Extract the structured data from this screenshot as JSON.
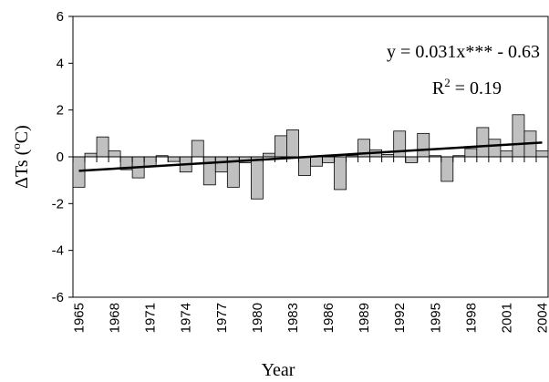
{
  "chart_data": {
    "type": "bar",
    "x_label": "Year",
    "y_label": {
      "before": "ΔTs (",
      "sup": "o",
      "after": "C)"
    },
    "annotations": [
      {
        "text": "y = 0.031x*** - 0.63"
      },
      {
        "before": "R",
        "sup": "2",
        "after": " = 0.19"
      }
    ],
    "categories": [
      "1965",
      null,
      null,
      "1968",
      null,
      null,
      "1971",
      null,
      null,
      "1974",
      null,
      null,
      "1977",
      null,
      null,
      "1980",
      null,
      null,
      "1983",
      null,
      null,
      "1986",
      null,
      null,
      "1989",
      null,
      null,
      "1992",
      null,
      null,
      "1995",
      null,
      null,
      "1998",
      null,
      null,
      "2001",
      null,
      null,
      "2004"
    ],
    "values": [
      -1.3,
      0.15,
      0.85,
      0.25,
      -0.55,
      -0.9,
      -0.4,
      0.05,
      -0.2,
      -0.65,
      0.7,
      -1.2,
      -0.65,
      -1.3,
      -0.25,
      -1.8,
      0.15,
      0.9,
      1.15,
      -0.8,
      -0.4,
      -0.25,
      -1.4,
      0.05,
      0.75,
      0.3,
      0.1,
      1.1,
      -0.25,
      1.0,
      0.05,
      -1.05,
      0.05,
      0.35,
      1.25,
      0.75,
      0.25,
      1.8,
      1.1,
      0.25
    ],
    "color": "#c0c0c0",
    "trend": {
      "values": [
        -0.6,
        0.61
      ],
      "color": "#000000"
    },
    "ylim": [
      -6,
      6
    ],
    "yticks": [
      -6,
      -4,
      -2,
      0,
      2,
      4,
      6
    ],
    "grid": false
  }
}
